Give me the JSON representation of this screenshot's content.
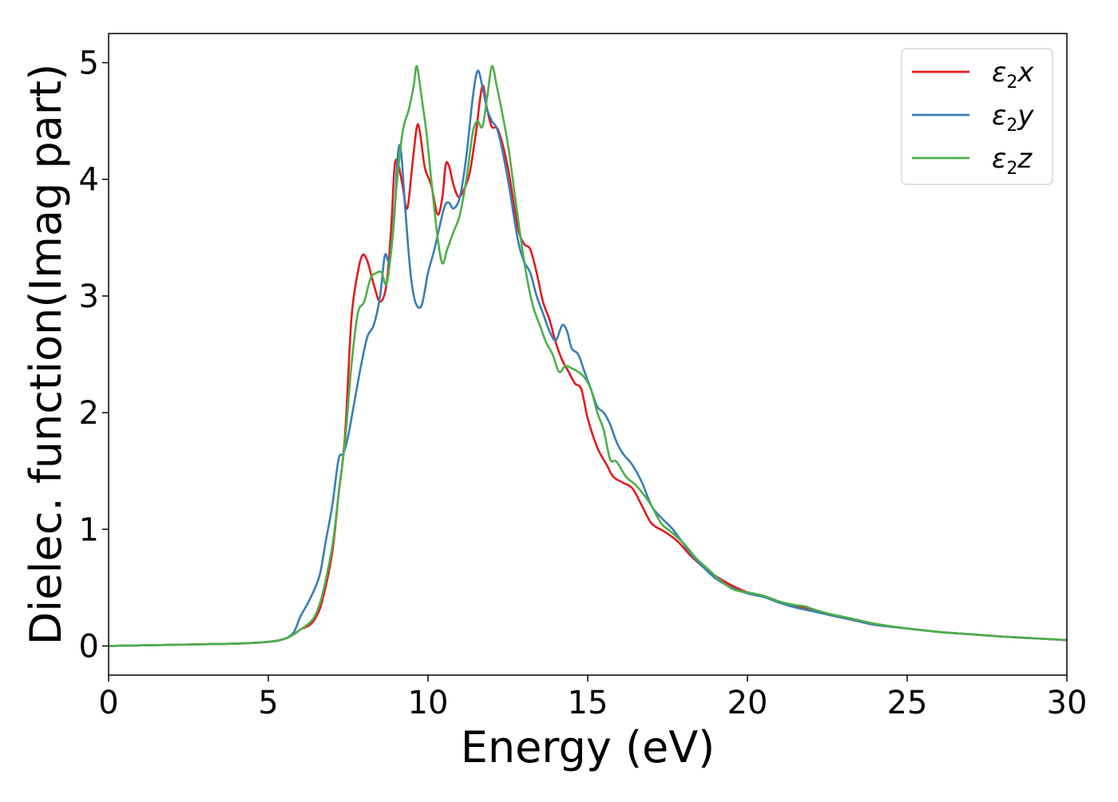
{
  "chart_data": {
    "type": "line",
    "title": "",
    "xlabel": "Energy (eV)",
    "ylabel": "Dielec. function(Imag part)",
    "xlim": [
      0,
      30
    ],
    "ylim": [
      -0.25,
      5.25
    ],
    "xticks": [
      0,
      5,
      10,
      15,
      20,
      25,
      30
    ],
    "xtick_labels": [
      "0",
      "5",
      "10",
      "15",
      "20",
      "25",
      "30"
    ],
    "yticks": [
      0,
      1,
      2,
      3,
      4,
      5
    ],
    "ytick_labels": [
      "0",
      "1",
      "2",
      "3",
      "4",
      "5"
    ],
    "grid": false,
    "legend_position": "top-right",
    "series": [
      {
        "name": "ε2x",
        "legend_base": "ε",
        "legend_sub": "2",
        "legend_tail": "x",
        "color": "#e41a1c",
        "points": [
          [
            0,
            0.0
          ],
          [
            2,
            0.01
          ],
          [
            4,
            0.02
          ],
          [
            5,
            0.035
          ],
          [
            5.5,
            0.06
          ],
          [
            5.8,
            0.1
          ],
          [
            6.0,
            0.14
          ],
          [
            6.3,
            0.18
          ],
          [
            6.5,
            0.25
          ],
          [
            6.7,
            0.4
          ],
          [
            7.0,
            0.8
          ],
          [
            7.2,
            1.3
          ],
          [
            7.4,
            1.8
          ],
          [
            7.6,
            2.8
          ],
          [
            7.8,
            3.2
          ],
          [
            7.95,
            3.35
          ],
          [
            8.1,
            3.3
          ],
          [
            8.3,
            3.1
          ],
          [
            8.5,
            2.95
          ],
          [
            8.7,
            3.1
          ],
          [
            8.85,
            3.6
          ],
          [
            8.95,
            4.1
          ],
          [
            9.05,
            4.15
          ],
          [
            9.2,
            3.95
          ],
          [
            9.35,
            3.75
          ],
          [
            9.5,
            4.1
          ],
          [
            9.65,
            4.45
          ],
          [
            9.75,
            4.4
          ],
          [
            9.9,
            4.1
          ],
          [
            10.1,
            3.95
          ],
          [
            10.3,
            3.7
          ],
          [
            10.45,
            3.85
          ],
          [
            10.55,
            4.12
          ],
          [
            10.65,
            4.12
          ],
          [
            10.8,
            3.95
          ],
          [
            10.95,
            3.85
          ],
          [
            11.1,
            3.9
          ],
          [
            11.3,
            4.05
          ],
          [
            11.5,
            4.4
          ],
          [
            11.7,
            4.8
          ],
          [
            11.85,
            4.6
          ],
          [
            12.0,
            4.45
          ],
          [
            12.2,
            4.42
          ],
          [
            12.5,
            4.1
          ],
          [
            12.8,
            3.6
          ],
          [
            13.0,
            3.45
          ],
          [
            13.2,
            3.4
          ],
          [
            13.4,
            3.2
          ],
          [
            13.6,
            2.95
          ],
          [
            13.8,
            2.8
          ],
          [
            14.0,
            2.6
          ],
          [
            14.2,
            2.45
          ],
          [
            14.4,
            2.35
          ],
          [
            14.6,
            2.25
          ],
          [
            14.8,
            2.2
          ],
          [
            15.0,
            1.95
          ],
          [
            15.3,
            1.7
          ],
          [
            15.6,
            1.55
          ],
          [
            15.8,
            1.45
          ],
          [
            16.1,
            1.4
          ],
          [
            16.4,
            1.35
          ],
          [
            16.7,
            1.2
          ],
          [
            17.0,
            1.05
          ],
          [
            17.4,
            0.98
          ],
          [
            17.8,
            0.9
          ],
          [
            18.2,
            0.78
          ],
          [
            18.6,
            0.68
          ],
          [
            19.0,
            0.6
          ],
          [
            19.5,
            0.52
          ],
          [
            20.0,
            0.46
          ],
          [
            20.5,
            0.43
          ],
          [
            21.0,
            0.38
          ],
          [
            21.5,
            0.34
          ],
          [
            22.0,
            0.31
          ],
          [
            22.5,
            0.27
          ],
          [
            23.0,
            0.24
          ],
          [
            23.5,
            0.21
          ],
          [
            24.0,
            0.18
          ],
          [
            25.0,
            0.15
          ],
          [
            26.0,
            0.12
          ],
          [
            27.0,
            0.1
          ],
          [
            28.0,
            0.08
          ],
          [
            29.0,
            0.065
          ],
          [
            30.0,
            0.05
          ]
        ]
      },
      {
        "name": "ε2y",
        "legend_base": "ε",
        "legend_sub": "2",
        "legend_tail": "y",
        "color": "#377eb8",
        "points": [
          [
            0,
            0.0
          ],
          [
            2,
            0.01
          ],
          [
            4,
            0.02
          ],
          [
            5,
            0.035
          ],
          [
            5.5,
            0.06
          ],
          [
            5.8,
            0.12
          ],
          [
            6.0,
            0.25
          ],
          [
            6.3,
            0.4
          ],
          [
            6.6,
            0.6
          ],
          [
            6.8,
            0.9
          ],
          [
            7.0,
            1.2
          ],
          [
            7.2,
            1.6
          ],
          [
            7.35,
            1.65
          ],
          [
            7.5,
            1.8
          ],
          [
            7.7,
            2.1
          ],
          [
            7.9,
            2.4
          ],
          [
            8.1,
            2.65
          ],
          [
            8.3,
            2.75
          ],
          [
            8.5,
            3.0
          ],
          [
            8.65,
            3.35
          ],
          [
            8.8,
            3.3
          ],
          [
            8.95,
            3.7
          ],
          [
            9.05,
            4.2
          ],
          [
            9.15,
            4.25
          ],
          [
            9.3,
            3.7
          ],
          [
            9.45,
            3.2
          ],
          [
            9.6,
            2.95
          ],
          [
            9.8,
            2.92
          ],
          [
            10.0,
            3.2
          ],
          [
            10.2,
            3.4
          ],
          [
            10.5,
            3.75
          ],
          [
            10.65,
            3.8
          ],
          [
            10.8,
            3.75
          ],
          [
            11.0,
            3.85
          ],
          [
            11.2,
            4.2
          ],
          [
            11.4,
            4.7
          ],
          [
            11.55,
            4.93
          ],
          [
            11.7,
            4.8
          ],
          [
            11.85,
            4.6
          ],
          [
            12.0,
            4.5
          ],
          [
            12.2,
            4.4
          ],
          [
            12.5,
            4.0
          ],
          [
            12.8,
            3.5
          ],
          [
            13.0,
            3.3
          ],
          [
            13.2,
            3.2
          ],
          [
            13.4,
            3.0
          ],
          [
            13.6,
            2.85
          ],
          [
            13.8,
            2.7
          ],
          [
            14.0,
            2.62
          ],
          [
            14.2,
            2.75
          ],
          [
            14.35,
            2.7
          ],
          [
            14.5,
            2.55
          ],
          [
            14.7,
            2.5
          ],
          [
            14.9,
            2.35
          ],
          [
            15.1,
            2.2
          ],
          [
            15.3,
            2.05
          ],
          [
            15.5,
            2.0
          ],
          [
            15.7,
            1.9
          ],
          [
            15.9,
            1.75
          ],
          [
            16.1,
            1.65
          ],
          [
            16.4,
            1.55
          ],
          [
            16.7,
            1.4
          ],
          [
            17.0,
            1.2
          ],
          [
            17.3,
            1.1
          ],
          [
            17.6,
            1.02
          ],
          [
            17.8,
            0.95
          ],
          [
            18.2,
            0.8
          ],
          [
            18.6,
            0.68
          ],
          [
            19.0,
            0.58
          ],
          [
            19.5,
            0.5
          ],
          [
            20.0,
            0.45
          ],
          [
            20.5,
            0.42
          ],
          [
            21.0,
            0.37
          ],
          [
            21.5,
            0.33
          ],
          [
            22.0,
            0.3
          ],
          [
            22.5,
            0.27
          ],
          [
            23.0,
            0.24
          ],
          [
            23.5,
            0.21
          ],
          [
            24.0,
            0.18
          ],
          [
            25.0,
            0.15
          ],
          [
            26.0,
            0.12
          ],
          [
            27.0,
            0.1
          ],
          [
            28.0,
            0.08
          ],
          [
            29.0,
            0.065
          ],
          [
            30.0,
            0.05
          ]
        ]
      },
      {
        "name": "ε2z",
        "legend_base": "ε",
        "legend_sub": "2",
        "legend_tail": "z",
        "color": "#4daf4a",
        "points": [
          [
            0,
            0.0
          ],
          [
            2,
            0.01
          ],
          [
            4,
            0.02
          ],
          [
            5,
            0.035
          ],
          [
            5.5,
            0.06
          ],
          [
            5.8,
            0.1
          ],
          [
            6.0,
            0.14
          ],
          [
            6.3,
            0.2
          ],
          [
            6.5,
            0.28
          ],
          [
            6.7,
            0.45
          ],
          [
            7.0,
            0.85
          ],
          [
            7.2,
            1.3
          ],
          [
            7.4,
            1.75
          ],
          [
            7.6,
            2.4
          ],
          [
            7.8,
            2.85
          ],
          [
            8.0,
            2.95
          ],
          [
            8.2,
            3.15
          ],
          [
            8.4,
            3.2
          ],
          [
            8.55,
            3.2
          ],
          [
            8.7,
            3.1
          ],
          [
            8.85,
            3.4
          ],
          [
            9.0,
            3.9
          ],
          [
            9.2,
            4.4
          ],
          [
            9.4,
            4.6
          ],
          [
            9.55,
            4.8
          ],
          [
            9.65,
            4.97
          ],
          [
            9.8,
            4.7
          ],
          [
            9.95,
            4.4
          ],
          [
            10.1,
            4.0
          ],
          [
            10.3,
            3.5
          ],
          [
            10.45,
            3.28
          ],
          [
            10.6,
            3.4
          ],
          [
            10.8,
            3.55
          ],
          [
            11.0,
            3.7
          ],
          [
            11.2,
            4.0
          ],
          [
            11.4,
            4.4
          ],
          [
            11.55,
            4.5
          ],
          [
            11.7,
            4.45
          ],
          [
            11.85,
            4.7
          ],
          [
            12.0,
            4.97
          ],
          [
            12.15,
            4.8
          ],
          [
            12.3,
            4.6
          ],
          [
            12.5,
            4.3
          ],
          [
            12.7,
            3.9
          ],
          [
            12.9,
            3.5
          ],
          [
            13.1,
            3.15
          ],
          [
            13.3,
            2.9
          ],
          [
            13.5,
            2.75
          ],
          [
            13.7,
            2.6
          ],
          [
            13.9,
            2.5
          ],
          [
            14.1,
            2.35
          ],
          [
            14.3,
            2.4
          ],
          [
            14.5,
            2.38
          ],
          [
            14.7,
            2.35
          ],
          [
            14.9,
            2.3
          ],
          [
            15.1,
            2.2
          ],
          [
            15.3,
            2.0
          ],
          [
            15.5,
            1.85
          ],
          [
            15.7,
            1.6
          ],
          [
            15.9,
            1.58
          ],
          [
            16.2,
            1.45
          ],
          [
            16.5,
            1.38
          ],
          [
            16.8,
            1.28
          ],
          [
            17.0,
            1.2
          ],
          [
            17.3,
            1.05
          ],
          [
            17.6,
            0.98
          ],
          [
            18.0,
            0.88
          ],
          [
            18.4,
            0.75
          ],
          [
            18.8,
            0.65
          ],
          [
            19.2,
            0.55
          ],
          [
            19.6,
            0.48
          ],
          [
            20.0,
            0.46
          ],
          [
            20.5,
            0.43
          ],
          [
            21.0,
            0.38
          ],
          [
            21.5,
            0.35
          ],
          [
            21.8,
            0.34
          ],
          [
            22.0,
            0.32
          ],
          [
            22.5,
            0.28
          ],
          [
            23.0,
            0.25
          ],
          [
            23.5,
            0.22
          ],
          [
            24.0,
            0.19
          ],
          [
            25.0,
            0.15
          ],
          [
            26.0,
            0.12
          ],
          [
            27.0,
            0.1
          ],
          [
            28.0,
            0.08
          ],
          [
            29.0,
            0.065
          ],
          [
            30.0,
            0.05
          ]
        ]
      }
    ]
  }
}
